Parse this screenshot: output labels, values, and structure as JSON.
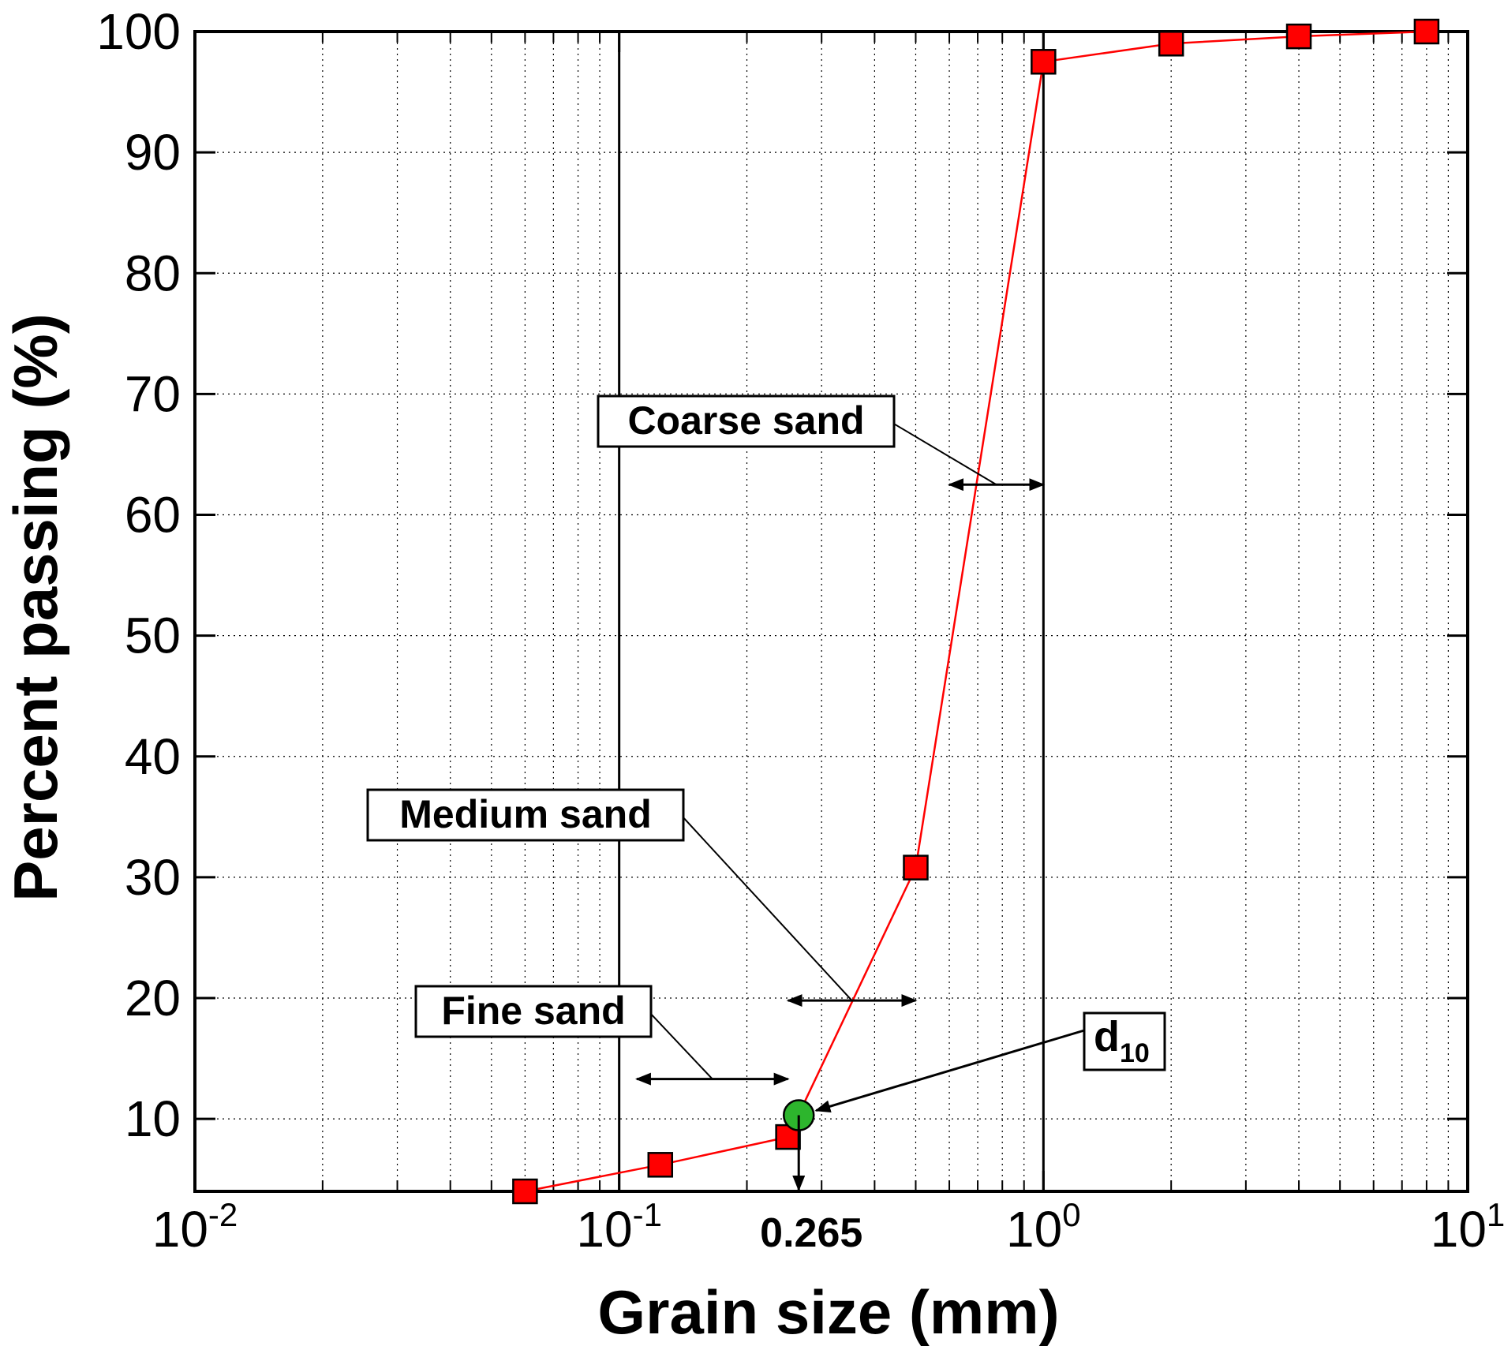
{
  "chart_data": {
    "type": "line",
    "xlabel": "Grain size (mm)",
    "ylabel": "Percent passing (%)",
    "xscale": "log",
    "xlim": [
      0.01,
      10
    ],
    "ylim": [
      4,
      100
    ],
    "grid": true,
    "xticks": [
      {
        "value": 0.01,
        "base": "10",
        "exp": "-2"
      },
      {
        "value": 0.1,
        "base": "10",
        "exp": "-1"
      },
      {
        "value": 1,
        "base": "10",
        "exp": "0"
      },
      {
        "value": 10,
        "base": "10",
        "exp": "1"
      }
    ],
    "yticks": [
      10,
      20,
      30,
      40,
      50,
      60,
      70,
      80,
      90,
      100
    ],
    "series": [
      {
        "color": "#ff0000",
        "marker": "square",
        "x": [
          0.06,
          0.125,
          0.25,
          0.5,
          1.0,
          2.0,
          4.0,
          8.0
        ],
        "y": [
          4.0,
          6.2,
          8.5,
          30.8,
          97.5,
          99.0,
          99.6,
          100.0
        ]
      }
    ],
    "d10_point": {
      "x": 0.265,
      "y": 10.3,
      "color": "#2db52d"
    },
    "d10_marker_label": "0.265",
    "annotations": [
      {
        "id": "coarse",
        "text": "Coarse sand",
        "range": [
          0.6,
          1.0
        ],
        "y": 62.5
      },
      {
        "id": "medium",
        "text": "Medium sand",
        "range": [
          0.25,
          0.5
        ],
        "y": 19.8
      },
      {
        "id": "fine",
        "text": "Fine sand",
        "range": [
          0.11,
          0.25
        ],
        "y": 13.3
      }
    ],
    "d10_label": {
      "base": "d",
      "sub": "10"
    }
  }
}
